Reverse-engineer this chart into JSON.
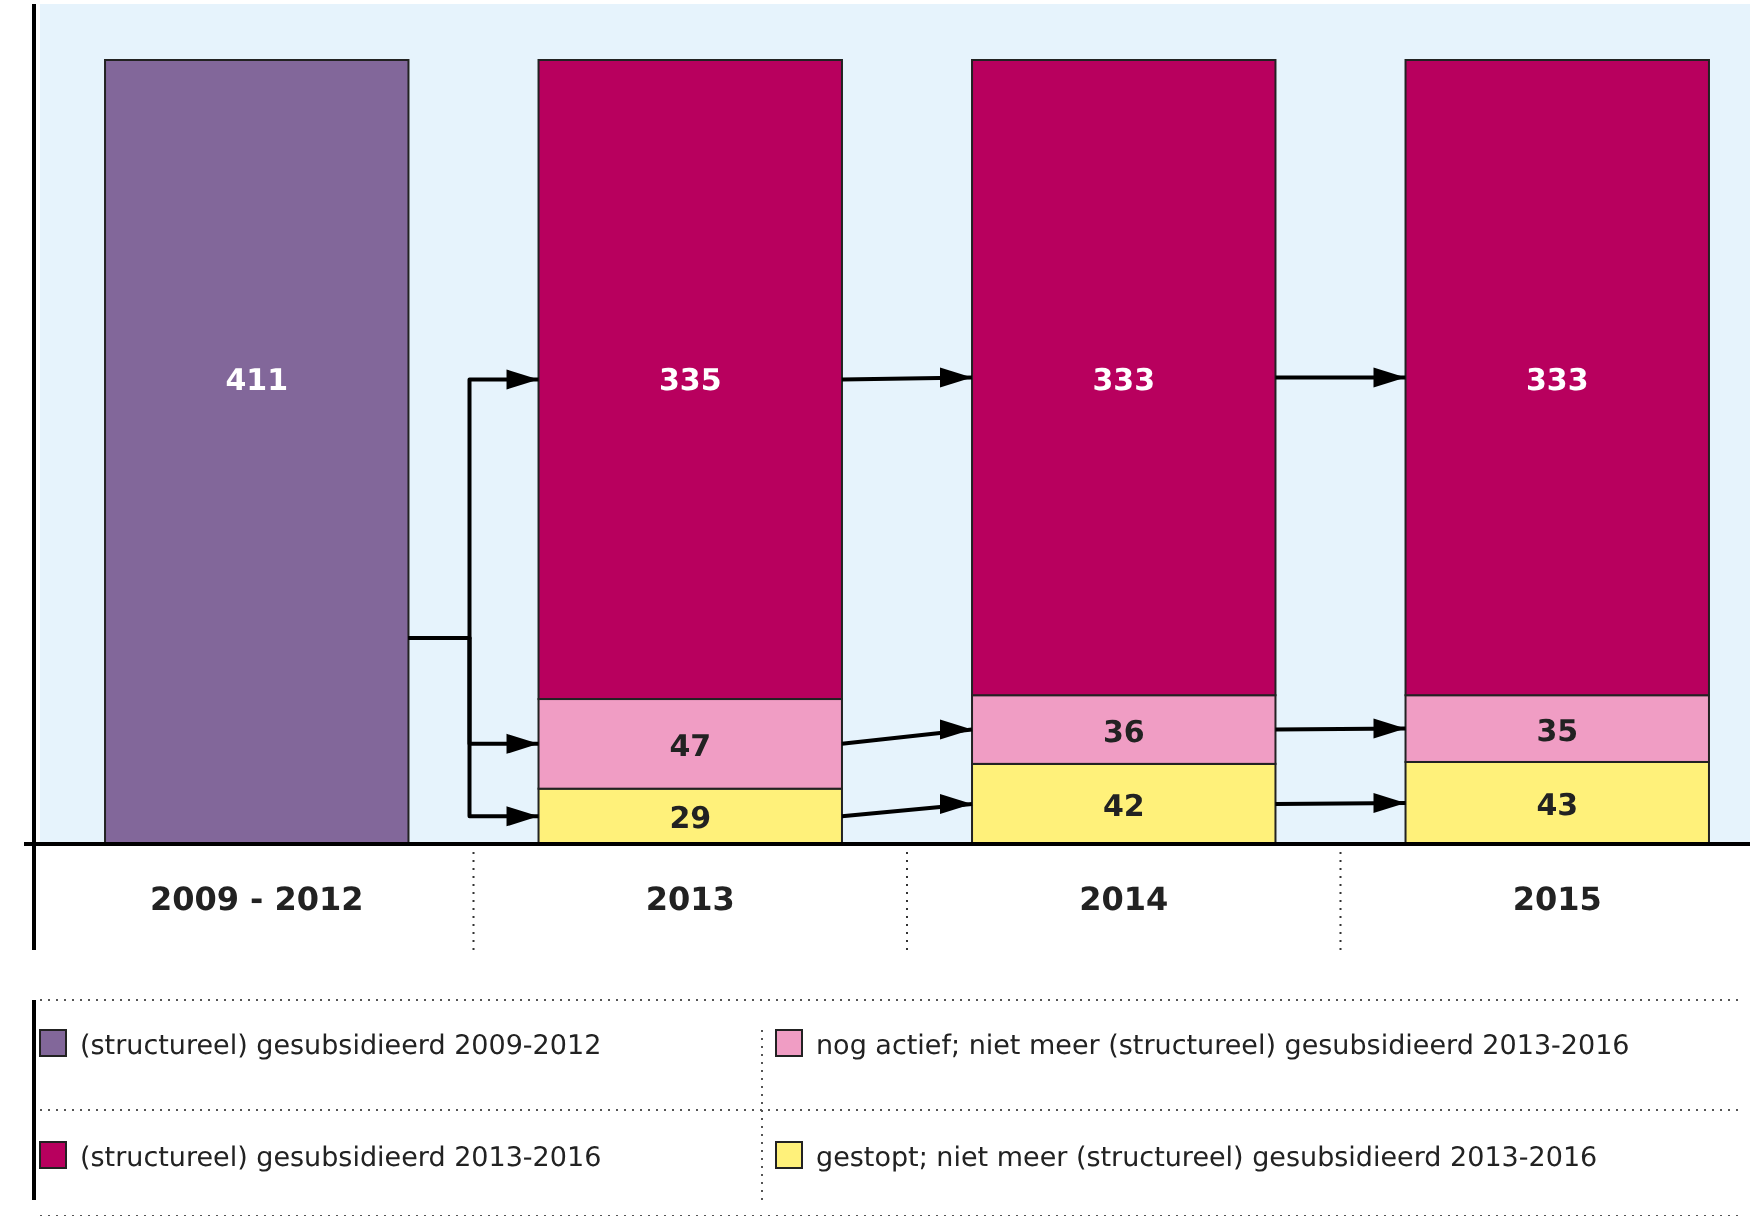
{
  "chart_data": {
    "type": "bar",
    "stacked": true,
    "data_labels": true,
    "legend": "bottom",
    "categories": [
      "2009 - 2012",
      "2013",
      "2014",
      "2015"
    ],
    "series": [
      {
        "name": "gestopt; niet meer (structureel) gesubsidieerd 2013-2016",
        "color": "#fff17a",
        "values": [
          null,
          29,
          42,
          43
        ]
      },
      {
        "name": "nog actief; niet meer (structureel) gesubsidieerd 2013-2016",
        "color": "#f09dc4",
        "values": [
          null,
          47,
          36,
          35
        ]
      },
      {
        "name": "(structureel) gesubsidieerd 2013-2016",
        "color": "#b8005e",
        "values": [
          null,
          335,
          333,
          333
        ]
      },
      {
        "name": "(structureel) gesubsidieerd 2009-2012",
        "color": "#82679a",
        "values": [
          411,
          null,
          null,
          null
        ]
      }
    ]
  }
}
